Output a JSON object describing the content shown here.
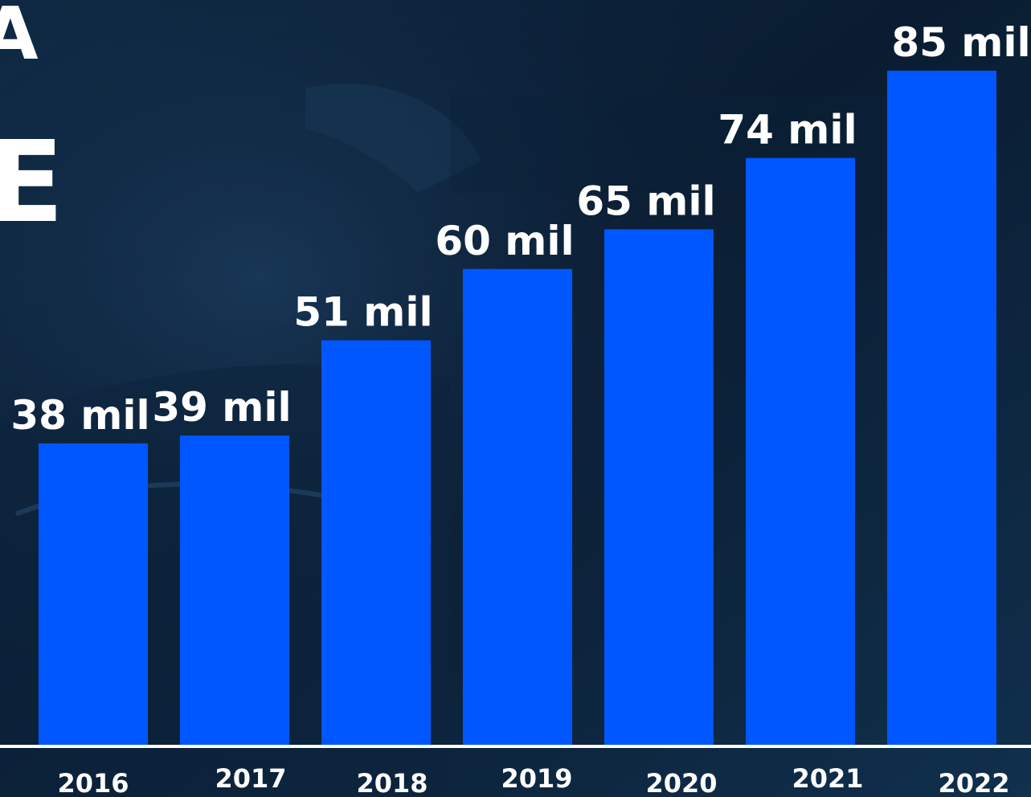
{
  "page": {
    "background_color": "#0b2038",
    "partial_title_glyphs": [
      "A",
      "E"
    ]
  },
  "chart_data": {
    "type": "bar",
    "categories": [
      "2016",
      "2017",
      "2018",
      "2019",
      "2020",
      "2021",
      "2022"
    ],
    "values": [
      38,
      39,
      51,
      60,
      65,
      74,
      85
    ],
    "value_labels": [
      "38 mil",
      "39 mil",
      "51 mil",
      "60 mil",
      "65 mil",
      "74 mil",
      "85 mil"
    ],
    "unit": "mil",
    "title": "",
    "xlabel": "",
    "ylabel": "",
    "ylim": [
      0,
      85
    ],
    "grid": false,
    "legend": "none",
    "bar_color": "#0057ff",
    "baseline_color": "#ffffff",
    "text_color": "#ffffff"
  }
}
